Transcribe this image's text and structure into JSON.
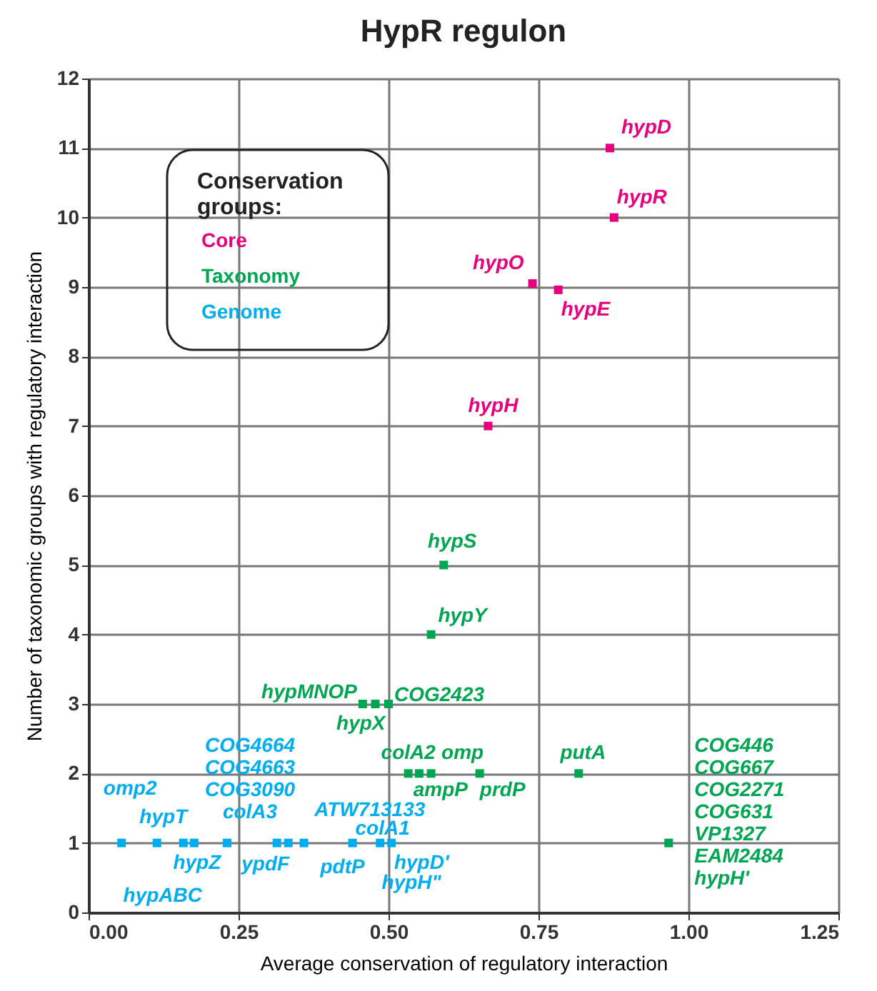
{
  "chart_data": {
    "type": "scatter",
    "title": "HypR regulon",
    "xlabel": "Average conservation of regulatory interaction",
    "ylabel": "Number of taxonomic groups  with regulatory interaction",
    "legend_title": "Conservation groups:",
    "legend": "top left",
    "grid": true,
    "marker": "square",
    "xlim": [
      0,
      1.25
    ],
    "xticks": [
      {
        "value": 0,
        "label": "0.00"
      },
      {
        "value": 0.25,
        "label": "0.25"
      },
      {
        "value": 0.5,
        "label": "0.50"
      },
      {
        "value": 0.75,
        "label": "0.75"
      },
      {
        "value": 1,
        "label": "1.00"
      },
      {
        "value": 1.25,
        "label": "1.25"
      }
    ],
    "ylim": [
      0,
      12
    ],
    "yticks": [
      0,
      1,
      2,
      3,
      4,
      5,
      6,
      7,
      8,
      9,
      10,
      11,
      12
    ],
    "series": [
      {
        "name": "Core",
        "color": "#e6007e",
        "x": [
          0.869,
          0.876,
          0.74,
          0.783,
          0.666
        ],
        "values": [
          11,
          10,
          9.05,
          8.96,
          7
        ],
        "value_labels": [
          "hypD",
          "hypR",
          "hypO",
          "hypE",
          "hypH"
        ]
      },
      {
        "name": "Taxonomy",
        "color": "#00a651",
        "x": [
          0.457,
          0.478,
          0.5,
          0.533,
          0.551,
          0.571,
          0.652,
          0.817,
          0.571,
          0.592,
          0.967
        ],
        "values": [
          3,
          3,
          3,
          2,
          2,
          2,
          2,
          2,
          4,
          5,
          1
        ],
        "value_labels": [
          "hypMNOP",
          "hypX",
          "COG2423",
          "colA2",
          "ampP",
          "omp",
          "prdP",
          "putA",
          "hypY",
          "hypS",
          "COG446\nCOG667\nCOG2271\nCOG631\nVP1327\nEAM2484\nhypH'"
        ]
      },
      {
        "name": "Genome",
        "color": "#00aeef",
        "x": [
          0.055,
          0.114,
          0.158,
          0.176,
          0.231,
          0.314,
          0.333,
          0.359,
          0.44,
          0.486,
          0.505
        ],
        "values": [
          1,
          1,
          1,
          1,
          1,
          1,
          1,
          1,
          1,
          1,
          1
        ],
        "value_labels": [
          "omp2",
          "hypABC",
          "hypT",
          "hypZ",
          "COG4664\nCOG4663\nCOG3090\ncolA3",
          "ATW713133",
          "ypdF",
          "pdtP",
          "colA1",
          "hypD'",
          "hypH\""
        ]
      }
    ]
  }
}
